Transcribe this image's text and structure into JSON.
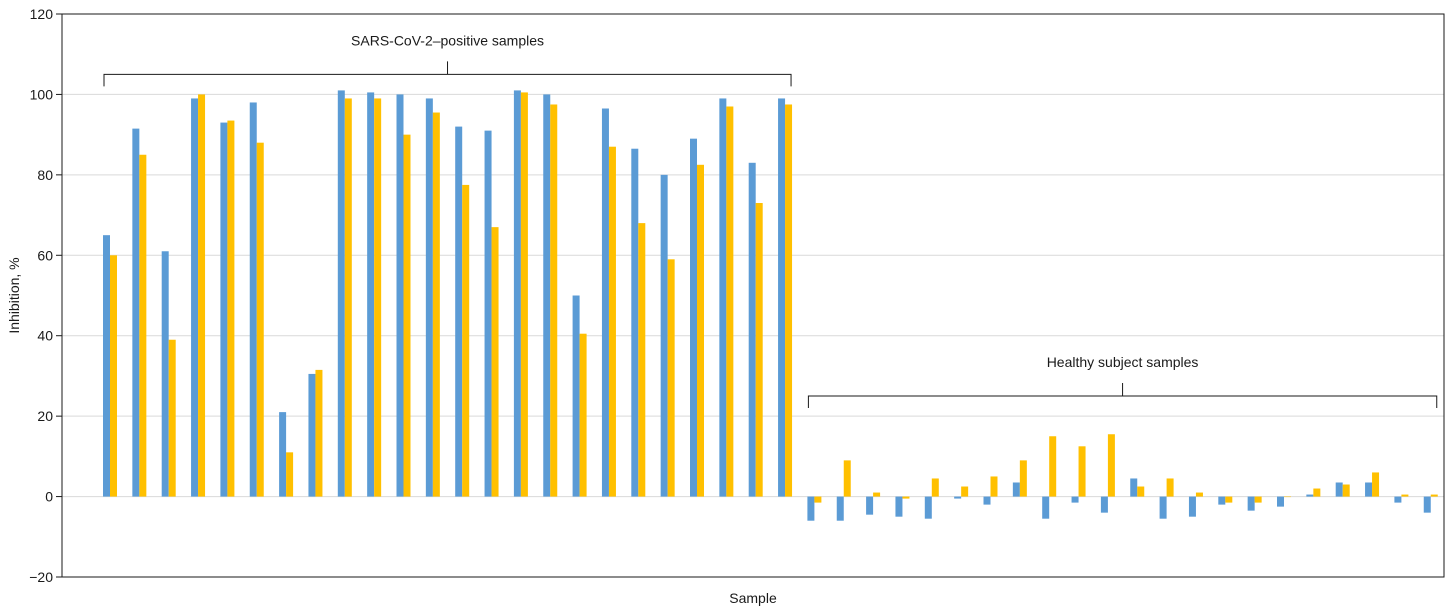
{
  "chart_data": {
    "type": "bar",
    "title": "",
    "xlabel": "Sample",
    "ylabel": "Inhibition, %",
    "ylim": [
      -20,
      120
    ],
    "yticks": [
      -20,
      0,
      20,
      40,
      60,
      80,
      100,
      120
    ],
    "ytick_labels": [
      "−20",
      "0",
      "20",
      "40",
      "60",
      "80",
      "100",
      "120"
    ],
    "grid": true,
    "legend": "none",
    "colors": [
      "#5b9bd5",
      "#ffc000"
    ],
    "series": [
      {
        "values": [
          65,
          91.5,
          61,
          99,
          93,
          98,
          21,
          30.5,
          101,
          100.5,
          100,
          99,
          92,
          91,
          101,
          100,
          50,
          96.5,
          86.5,
          80,
          89,
          99,
          83,
          99,
          -6,
          -6,
          -4.5,
          -5,
          -5.5,
          -0.5,
          -2,
          3.5,
          -5.5,
          -1.5,
          -4,
          4.5,
          -5.5,
          -5,
          -2,
          -3.5,
          -2.5,
          0.5,
          3.5,
          3.5,
          -1.5,
          -4
        ]
      },
      {
        "values": [
          60,
          85,
          39,
          100,
          93.5,
          88,
          11,
          31.5,
          99,
          99,
          90,
          95.5,
          77.5,
          67,
          100.5,
          97.5,
          40.5,
          87,
          68,
          59,
          82.5,
          97,
          73,
          97.5,
          -1.5,
          9,
          1,
          -0.5,
          4.5,
          2.5,
          5,
          9,
          15,
          12.5,
          15.5,
          2.5,
          4.5,
          1,
          -1.5,
          -1.5,
          0,
          2,
          3,
          6,
          0.5,
          0.5
        ]
      }
    ],
    "annotations": [
      {
        "text": "SARS-CoV-2–positive samples",
        "from_index": 0,
        "to_index": 23,
        "y": 105
      },
      {
        "text": "Healthy subject samples",
        "from_index": 24,
        "to_index": 45,
        "y": 25
      }
    ]
  }
}
